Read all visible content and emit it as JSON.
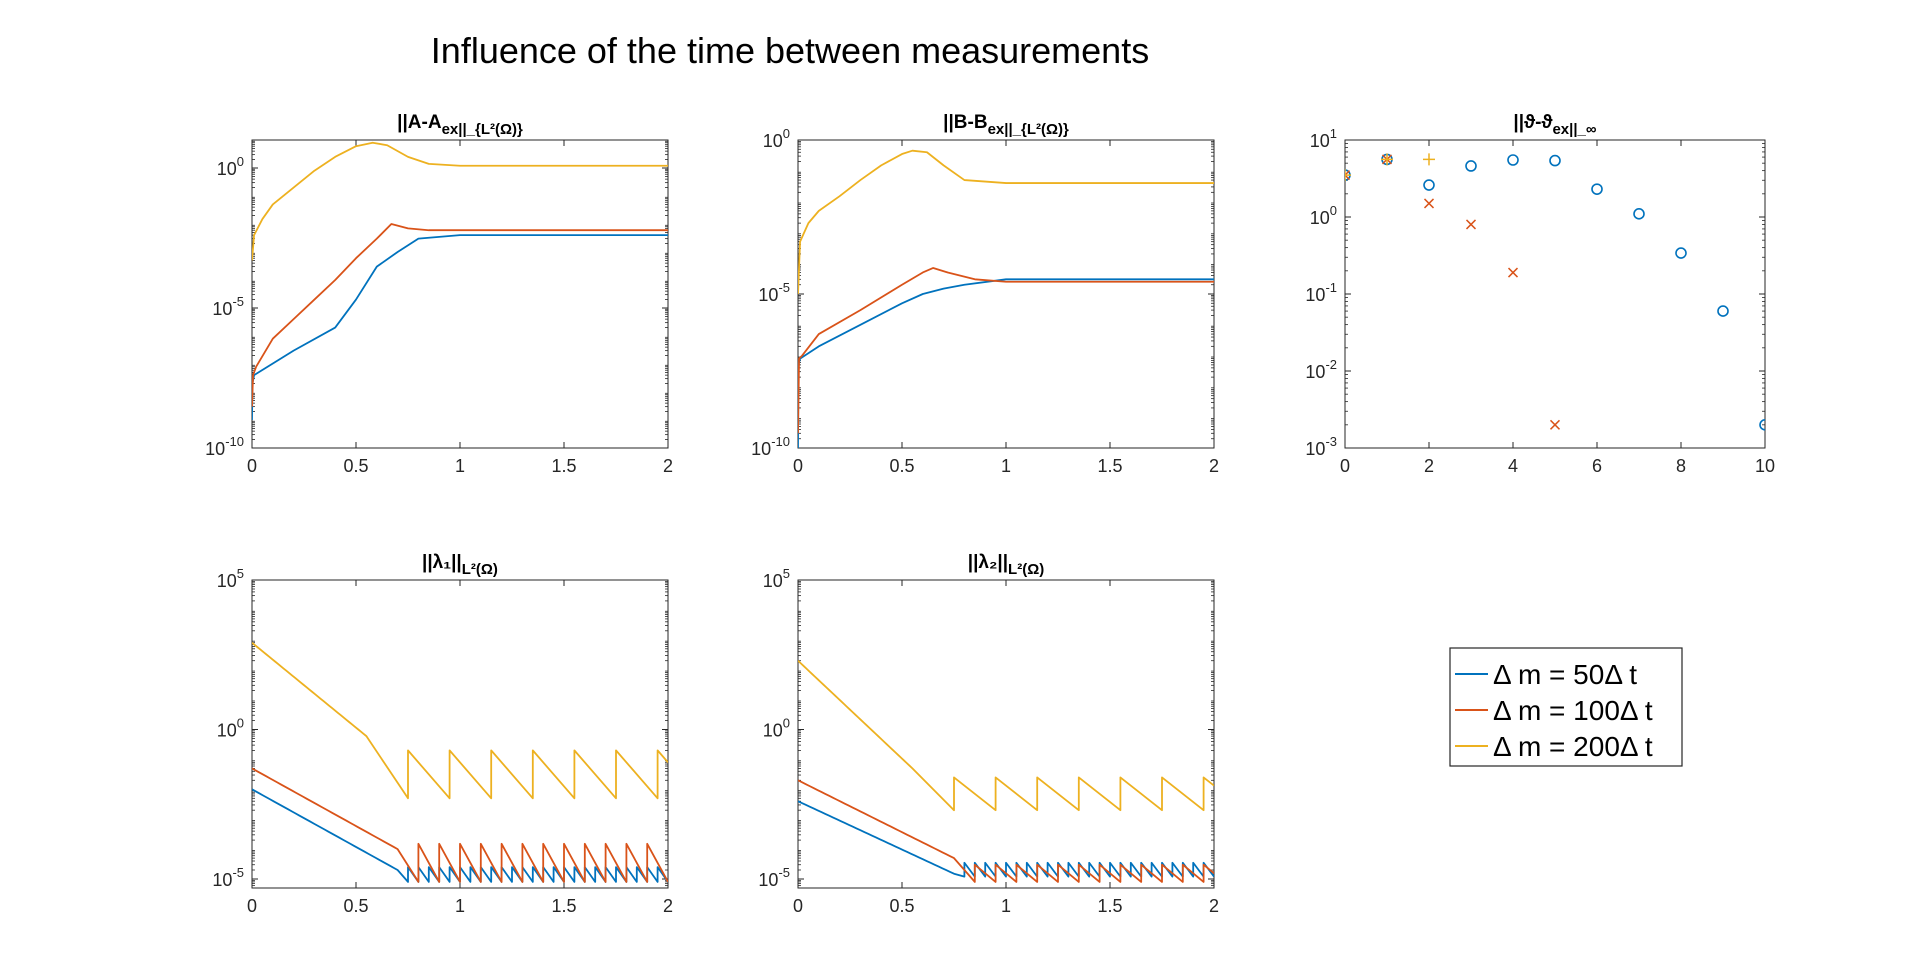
{
  "figure": {
    "title": "Influence of the time between measurements"
  },
  "legend": {
    "position": "lower-right",
    "entries": [
      {
        "label": "Δ m = 50Δ t",
        "color": "#0072BD"
      },
      {
        "label": "Δ m = 100Δ t",
        "color": "#D95319"
      },
      {
        "label": "Δ m = 200Δ t",
        "color": "#EDB120"
      }
    ]
  },
  "chart_data": [
    {
      "id": "A",
      "type": "line",
      "title": "||A-A_ex||_{L²(Ω)}",
      "yscale": "log",
      "xlim": [
        0,
        2
      ],
      "ylim": [
        1e-10,
        10
      ],
      "xticks": [
        0,
        0.5,
        1,
        1.5,
        2
      ],
      "xtick_labels": [
        "0",
        "0.5",
        "1",
        "1.5",
        "2"
      ],
      "yticks": [
        1e-10,
        1e-05,
        1
      ],
      "ytick_labels": [
        "10^-10",
        "10^-5",
        "10^0"
      ],
      "series": [
        {
          "x": [
            0,
            0.002,
            0.01,
            0.2,
            0.4,
            0.5,
            0.6,
            0.7,
            0.8,
            1.0,
            2.0
          ],
          "y": [
            1e-09,
            2e-08,
            4e-08,
            3e-07,
            2e-06,
            2e-05,
            0.0003,
            0.001,
            0.003,
            0.004,
            0.004
          ]
        },
        {
          "x": [
            0,
            0.005,
            0.02,
            0.1,
            0.2,
            0.3,
            0.4,
            0.5,
            0.6,
            0.67,
            0.75,
            0.85,
            1.0,
            2.0
          ],
          "y": [
            3e-09,
            4e-08,
            8e-08,
            8e-07,
            4e-06,
            2e-05,
            0.0001,
            0.0006,
            0.003,
            0.01,
            0.007,
            0.006,
            0.006,
            0.006
          ]
        },
        {
          "x": [
            0,
            0.01,
            0.05,
            0.1,
            0.2,
            0.3,
            0.4,
            0.5,
            0.58,
            0.65,
            0.75,
            0.85,
            1.0,
            2.0
          ],
          "y": [
            0.0005,
            0.004,
            0.015,
            0.05,
            0.2,
            0.8,
            2.5,
            6,
            8,
            6.5,
            2.5,
            1.4,
            1.2,
            1.2
          ]
        }
      ]
    },
    {
      "id": "B",
      "type": "line",
      "title": "||B-B_ex||_{L²(Ω)}",
      "yscale": "log",
      "xlim": [
        0,
        2
      ],
      "ylim": [
        1e-10,
        1
      ],
      "xticks": [
        0,
        0.5,
        1,
        1.5,
        2
      ],
      "xtick_labels": [
        "0",
        "0.5",
        "1",
        "1.5",
        "2"
      ],
      "yticks": [
        1e-10,
        1e-05,
        1
      ],
      "ytick_labels": [
        "10^-10",
        "10^-5",
        "10^0"
      ],
      "series": [
        {
          "x": [
            0,
            0.002,
            0.01,
            0.1,
            0.3,
            0.5,
            0.6,
            0.7,
            0.8,
            1.0,
            2.0
          ],
          "y": [
            1e-10,
            5e-08,
            8e-08,
            2e-07,
            1e-06,
            5e-06,
            1e-05,
            1.5e-05,
            2e-05,
            3e-05,
            3e-05
          ]
        },
        {
          "x": [
            0,
            0.005,
            0.02,
            0.1,
            0.3,
            0.5,
            0.6,
            0.65,
            0.72,
            0.85,
            1.0,
            2.0
          ],
          "y": [
            3e-10,
            8e-08,
            1e-07,
            5e-07,
            3e-06,
            2e-05,
            5e-05,
            7e-05,
            5e-05,
            3e-05,
            2.5e-05,
            2.5e-05
          ]
        },
        {
          "x": [
            0,
            0.01,
            0.05,
            0.1,
            0.2,
            0.3,
            0.4,
            0.5,
            0.55,
            0.62,
            0.7,
            0.8,
            1.0,
            2.0
          ],
          "y": [
            1e-05,
            0.0005,
            0.002,
            0.005,
            0.015,
            0.05,
            0.15,
            0.35,
            0.45,
            0.4,
            0.15,
            0.05,
            0.04,
            0.04
          ]
        }
      ]
    },
    {
      "id": "theta",
      "type": "scatter",
      "title": "||ϑ-ϑ_ex||_∞",
      "yscale": "log",
      "xlim": [
        0,
        10
      ],
      "ylim": [
        0.001,
        10
      ],
      "xticks": [
        0,
        2,
        4,
        6,
        8,
        10
      ],
      "xtick_labels": [
        "0",
        "2",
        "4",
        "6",
        "8",
        "10"
      ],
      "yticks": [
        0.001,
        0.01,
        0.1,
        1,
        10
      ],
      "ytick_labels": [
        "10^-3",
        "10^-2",
        "10^-1",
        "10^0",
        "10^1"
      ],
      "series": [
        {
          "marker": "circle",
          "x": [
            0,
            1,
            2,
            3,
            4,
            5,
            6,
            7,
            8,
            9,
            10
          ],
          "y": [
            3.5,
            5.6,
            2.6,
            4.6,
            5.5,
            5.4,
            2.3,
            1.1,
            0.34,
            0.06,
            0.002
          ]
        },
        {
          "marker": "cross",
          "x": [
            0,
            1,
            2,
            3,
            4,
            5
          ],
          "y": [
            3.5,
            5.6,
            1.5,
            0.8,
            0.19,
            0.002
          ]
        },
        {
          "marker": "plus",
          "x": [
            0,
            1,
            2
          ],
          "y": [
            3.5,
            5.6,
            5.6
          ]
        }
      ]
    },
    {
      "id": "lambda1",
      "type": "line",
      "title": "||λ₁||_{L²(Ω)}",
      "yscale": "log",
      "xlim": [
        0,
        2
      ],
      "ylim": [
        5e-06,
        100000.0
      ],
      "xticks": [
        0,
        0.5,
        1,
        1.5,
        2
      ],
      "xtick_labels": [
        "0",
        "0.5",
        "1",
        "1.5",
        "2"
      ],
      "yticks": [
        1e-05,
        1,
        100000.0
      ],
      "ytick_labels": [
        "10^-5",
        "10^0",
        "10^5"
      ],
      "series": [
        {
          "sawtooth": {
            "x_start": 0,
            "y_start": 0.01,
            "x_trend_end": 0.7,
            "y_trend_end": 2e-05,
            "period": 0.05,
            "low": 8e-06,
            "high": 2.5e-05
          }
        },
        {
          "sawtooth": {
            "x_start": 0,
            "y_start": 0.05,
            "x_trend_end": 0.7,
            "y_trend_end": 0.0001,
            "period": 0.1,
            "low": 8e-06,
            "high": 0.00015
          }
        },
        {
          "sawtooth": {
            "x_start": 0,
            "y_start": 800,
            "x_trend_end": 0.55,
            "y_trend_end": 0.6,
            "period": 0.2,
            "low": 0.005,
            "high": 0.2
          }
        }
      ]
    },
    {
      "id": "lambda2",
      "type": "line",
      "title": "||λ₂||_{L²(Ω)}",
      "yscale": "log",
      "xlim": [
        0,
        2
      ],
      "ylim": [
        5e-06,
        100000.0
      ],
      "xticks": [
        0,
        0.5,
        1,
        1.5,
        2
      ],
      "xtick_labels": [
        "0",
        "0.5",
        "1",
        "1.5",
        "2"
      ],
      "yticks": [
        1e-05,
        1,
        100000.0
      ],
      "ytick_labels": [
        "10^-5",
        "10^0",
        "10^5"
      ],
      "series": [
        {
          "sawtooth": {
            "x_start": 0,
            "y_start": 0.004,
            "x_trend_end": 0.75,
            "y_trend_end": 1.5e-05,
            "period": 0.05,
            "low": 1.2e-05,
            "high": 3.5e-05
          }
        },
        {
          "sawtooth": {
            "x_start": 0,
            "y_start": 0.02,
            "x_trend_end": 0.75,
            "y_trend_end": 5e-05,
            "period": 0.1,
            "low": 8e-06,
            "high": 3e-05
          }
        },
        {
          "sawtooth": {
            "x_start": 0,
            "y_start": 200,
            "x_trend_end": 0.55,
            "y_trend_end": 0.05,
            "period": 0.2,
            "low": 0.002,
            "high": 0.025
          }
        }
      ]
    }
  ]
}
